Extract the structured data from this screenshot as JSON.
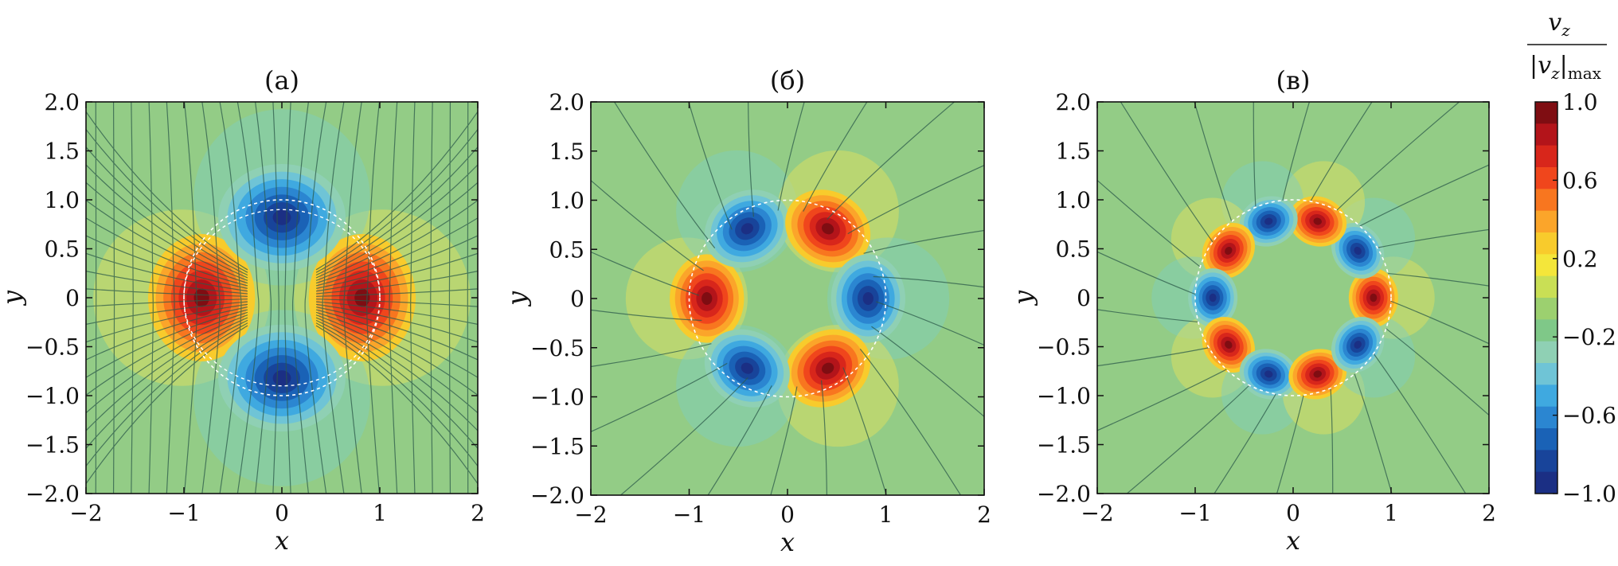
{
  "figure": {
    "panel_titles": [
      "(а)",
      "(б)",
      "(в)"
    ],
    "colorbar": {
      "label_num": "v",
      "label_num_sub": "z",
      "label_den": "|v",
      "label_den_sub": "z",
      "label_den_tail": "|",
      "label_den_tail_sub": "max",
      "ticks": [
        "1.0",
        "0.6",
        "0.2",
        "−0.2",
        "−0.6",
        "−1.0"
      ],
      "tick_values": [
        1.0,
        0.6,
        0.2,
        -0.2,
        -0.6,
        -1.0
      ],
      "colors": [
        "#7f0d12",
        "#b3141a",
        "#d8261b",
        "#f0461c",
        "#f8761f",
        "#fba52a",
        "#f8cb2c",
        "#f4e63a",
        "#c9df55",
        "#9cd06f",
        "#7fc888",
        "#8fd0b4",
        "#6fc4d6",
        "#3fa9e0",
        "#2b86d1",
        "#1a62b6",
        "#18449a",
        "#1b2f84"
      ]
    },
    "axes": {
      "xlabel": "x",
      "ylabel": "y",
      "xticks": [
        "−2",
        "−1",
        "0",
        "1",
        "2"
      ],
      "yticks": [
        "2.0",
        "1.5",
        "1.0",
        "0.5",
        "0",
        "−0.5",
        "−1.0",
        "−1.5",
        "−2.0"
      ]
    }
  },
  "chart_data": [
    {
      "type": "heatmap",
      "title": "(а)",
      "xlabel": "x",
      "ylabel": "y",
      "xlim": [
        -2,
        2
      ],
      "ylim": [
        -2,
        2
      ],
      "colorbar_range": [
        -1.0,
        1.0
      ],
      "lobes": [
        {
          "x": -0.82,
          "y": 0.0,
          "value": 1.0
        },
        {
          "x": 0.82,
          "y": 0.0,
          "value": 1.0
        },
        {
          "x": 0.0,
          "y": 0.82,
          "value": -1.0
        },
        {
          "x": 0.0,
          "y": -0.82,
          "value": -1.0
        }
      ],
      "reference_circle_radius": 1.0
    },
    {
      "type": "heatmap",
      "title": "(б)",
      "xlabel": "x",
      "ylabel": "y",
      "xlim": [
        -2,
        2
      ],
      "ylim": [
        -2,
        2
      ],
      "colorbar_range": [
        -1.0,
        1.0
      ],
      "lobes": [
        {
          "x": -0.82,
          "y": 0.0,
          "value": 1.0
        },
        {
          "x": -0.41,
          "y": 0.71,
          "value": -1.0
        },
        {
          "x": 0.41,
          "y": 0.71,
          "value": 1.0
        },
        {
          "x": 0.82,
          "y": 0.0,
          "value": -1.0
        },
        {
          "x": 0.41,
          "y": -0.71,
          "value": 1.0
        },
        {
          "x": -0.41,
          "y": -0.71,
          "value": -1.0
        }
      ],
      "reference_circle_radius": 1.0
    },
    {
      "type": "heatmap",
      "title": "(в)",
      "xlabel": "x",
      "ylabel": "y",
      "xlim": [
        -2,
        2
      ],
      "ylim": [
        -2,
        2
      ],
      "colorbar_range": [
        -1.0,
        1.0
      ],
      "lobes": [
        {
          "x": 0.82,
          "y": 0.0,
          "value": 1.0
        },
        {
          "x": 0.66,
          "y": 0.48,
          "value": -1.0
        },
        {
          "x": 0.25,
          "y": 0.78,
          "value": 1.0
        },
        {
          "x": -0.25,
          "y": 0.78,
          "value": -1.0
        },
        {
          "x": -0.66,
          "y": 0.48,
          "value": 1.0
        },
        {
          "x": -0.82,
          "y": 0.0,
          "value": -1.0
        },
        {
          "x": -0.66,
          "y": -0.48,
          "value": 1.0
        },
        {
          "x": -0.25,
          "y": -0.78,
          "value": -1.0
        },
        {
          "x": 0.25,
          "y": -0.78,
          "value": 1.0
        },
        {
          "x": 0.66,
          "y": -0.48,
          "value": -1.0
        }
      ],
      "reference_circle_radius": 1.0
    }
  ]
}
